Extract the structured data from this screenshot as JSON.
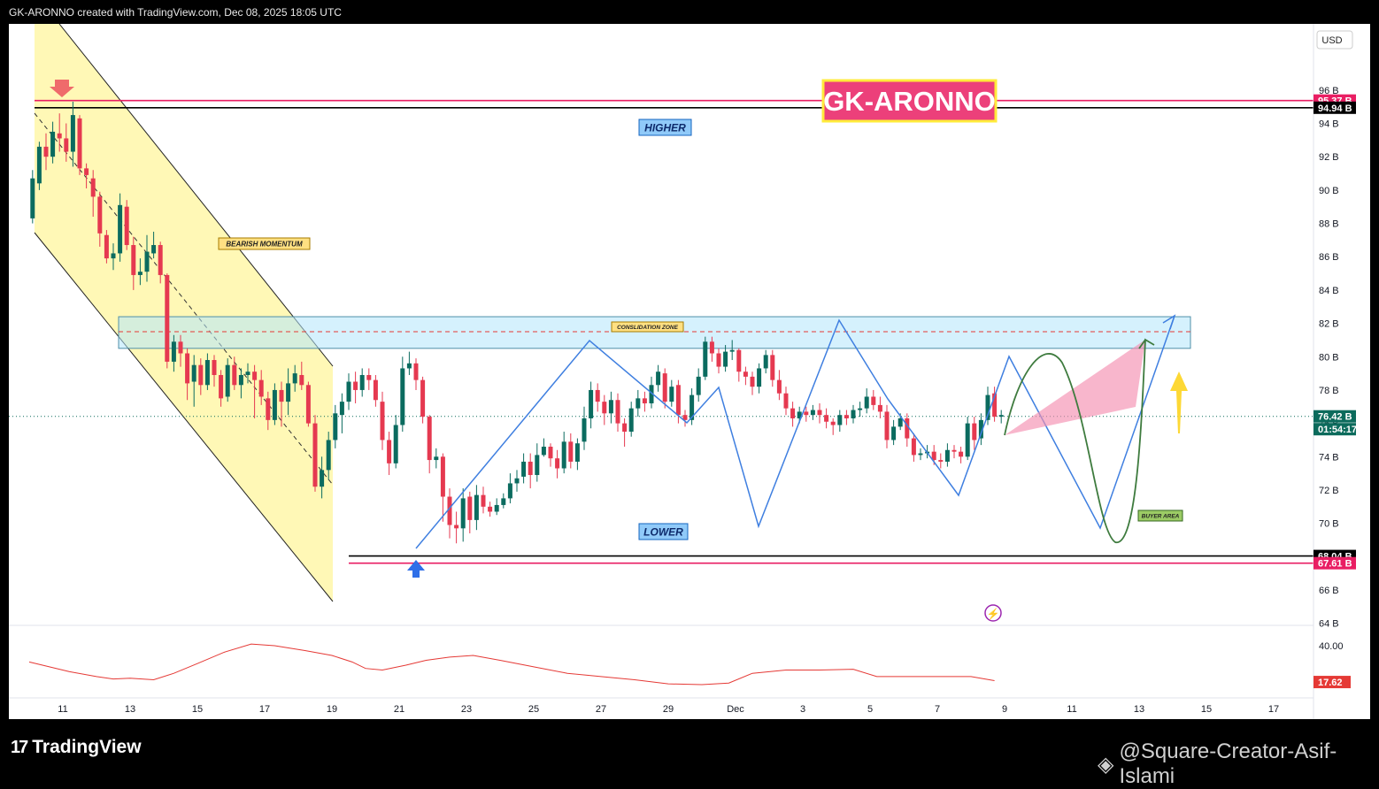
{
  "header": {
    "title": "GK-ARONNO created with TradingView.com, Dec 08, 2025 18:05 UTC"
  },
  "footer": {
    "brand": "TradingView",
    "watermark": "@Square-Creator-Asif-Islami"
  },
  "chart_data": {
    "type": "candlestick",
    "currency": "USD",
    "y_ticks": [
      "96 B",
      "94 B",
      "92 B",
      "90 B",
      "88 B",
      "86 B",
      "84 B",
      "82 B",
      "80 B",
      "78 B",
      "76 B",
      "74 B",
      "72 B",
      "70 B",
      "68 B",
      "66 B",
      "64 B"
    ],
    "y_tick_values": [
      96,
      94,
      92,
      90,
      88,
      86,
      84,
      82,
      80,
      78,
      76,
      74,
      72,
      70,
      68,
      66,
      64
    ],
    "x_ticks": [
      "11",
      "13",
      "15",
      "17",
      "19",
      "21",
      "23",
      "25",
      "27",
      "29",
      "Dec",
      "3",
      "5",
      "7",
      "9",
      "11",
      "13",
      "15",
      "17"
    ],
    "x_tick_days": [
      11,
      13,
      15,
      17,
      19,
      21,
      23,
      25,
      27,
      29,
      31,
      33,
      35,
      37,
      39,
      41,
      43,
      45,
      47
    ],
    "price_labels": [
      {
        "text": "95.37 B",
        "value": 95.37,
        "color": "#e91e63"
      },
      {
        "text": "94.94 B",
        "value": 94.94,
        "color": "#000000"
      },
      {
        "text": "76.42 B",
        "value": 76.42,
        "color": "#0c6b5c"
      },
      {
        "text": "01:54:17",
        "value": 75.65,
        "color": "#0c6b5c"
      },
      {
        "text": "68.04 B",
        "value": 68.04,
        "color": "#000000"
      },
      {
        "text": "67.61 B",
        "value": 67.61,
        "color": "#e91e63"
      }
    ],
    "levels": [
      {
        "name": "resistance-pink",
        "value": 95.37,
        "color": "#e91e63"
      },
      {
        "name": "resistance-black",
        "value": 94.94,
        "color": "#000000"
      },
      {
        "name": "support-black",
        "value": 68.04,
        "color": "#000000"
      },
      {
        "name": "support-pink",
        "value": 67.61,
        "color": "#e91e63"
      },
      {
        "name": "current-price",
        "value": 76.42,
        "color": "#0c6b5c"
      }
    ],
    "annotations": {
      "brand_label": "GK-ARONNO",
      "higher": "HIGHER",
      "lower": "LOWER",
      "bearish": "BEARISH MOMENTUM",
      "consolidation": "CONSLIDATION ZONE",
      "buyer": "BUYER AREA"
    },
    "consolidation_zone": {
      "low": 80.5,
      "high": 82.4
    },
    "oscillator": {
      "y_ticks": [
        "40.00",
        "17.62"
      ],
      "y_tick_values": [
        40.0,
        17.62
      ],
      "current": 17.62,
      "color": "#e53935",
      "values": [
        [
          10.0,
          30
        ],
        [
          10.6,
          27
        ],
        [
          11.2,
          24
        ],
        [
          12,
          21
        ],
        [
          12.5,
          19.5
        ],
        [
          13,
          20
        ],
        [
          13.7,
          19
        ],
        [
          14.3,
          23
        ],
        [
          15,
          29
        ],
        [
          15.8,
          36
        ],
        [
          16.6,
          41
        ],
        [
          17.3,
          40
        ],
        [
          18.2,
          37
        ],
        [
          19,
          34
        ],
        [
          19.6,
          30
        ],
        [
          20,
          26
        ],
        [
          20.5,
          25
        ],
        [
          21.2,
          28
        ],
        [
          21.8,
          31
        ],
        [
          22.5,
          33
        ],
        [
          23.2,
          34
        ],
        [
          24,
          31
        ],
        [
          25,
          27
        ],
        [
          26,
          23
        ],
        [
          27,
          21
        ],
        [
          28,
          19
        ],
        [
          29,
          16.5
        ],
        [
          30,
          16
        ],
        [
          30.8,
          17
        ],
        [
          31.5,
          23
        ],
        [
          32.5,
          25
        ],
        [
          33.5,
          25
        ],
        [
          34.5,
          25.5
        ],
        [
          35.2,
          21
        ],
        [
          36,
          21
        ],
        [
          37,
          21
        ],
        [
          38,
          21
        ],
        [
          38.7,
          18.5
        ]
      ]
    },
    "candles": [
      [
        10.1,
        88.3,
        90.7,
        88.0,
        91.2
      ],
      [
        10.3,
        90.4,
        92.6,
        90.0,
        92.9
      ],
      [
        10.5,
        92.6,
        92.0,
        91.2,
        93.4
      ],
      [
        10.7,
        92.0,
        93.5,
        91.6,
        94.1
      ],
      [
        10.9,
        93.4,
        93.1,
        92.3,
        94.6
      ],
      [
        11.1,
        93.1,
        92.3,
        91.7,
        94.0
      ],
      [
        11.3,
        92.3,
        94.5,
        91.4,
        95.3
      ],
      [
        11.5,
        94.3,
        91.3,
        90.9,
        94.5
      ],
      [
        11.7,
        91.3,
        90.9,
        90.1,
        91.6
      ],
      [
        11.9,
        90.7,
        89.6,
        88.4,
        91.2
      ],
      [
        12.1,
        89.6,
        87.4,
        86.6,
        89.9
      ],
      [
        12.3,
        87.3,
        85.9,
        85.6,
        87.6
      ],
      [
        12.5,
        85.9,
        86.2,
        85.2,
        86.8
      ],
      [
        12.7,
        86.2,
        89.1,
        85.7,
        89.8
      ],
      [
        12.9,
        89.0,
        86.7,
        86.4,
        89.4
      ],
      [
        13.1,
        86.7,
        84.9,
        84.0,
        87.2
      ],
      [
        13.3,
        84.9,
        85.1,
        84.3,
        85.9
      ],
      [
        13.5,
        85.1,
        86.3,
        84.5,
        87.3
      ],
      [
        13.7,
        86.2,
        86.7,
        85.9,
        87.5
      ],
      [
        13.9,
        86.7,
        84.9,
        84.4,
        86.9
      ],
      [
        14.1,
        84.9,
        79.7,
        79.3,
        85.0
      ],
      [
        14.3,
        79.7,
        80.9,
        79.1,
        81.3
      ],
      [
        14.5,
        80.9,
        80.2,
        79.4,
        81.3
      ],
      [
        14.7,
        80.2,
        78.4,
        77.4,
        80.5
      ],
      [
        14.9,
        78.5,
        79.5,
        77.0,
        80.1
      ],
      [
        15.1,
        79.5,
        78.3,
        77.7,
        79.9
      ],
      [
        15.3,
        78.3,
        79.8,
        78.0,
        80.2
      ],
      [
        15.5,
        79.8,
        78.9,
        78.2,
        80.1
      ],
      [
        15.7,
        78.9,
        77.5,
        77.0,
        79.2
      ],
      [
        15.9,
        77.6,
        79.5,
        77.3,
        79.9
      ],
      [
        16.1,
        79.5,
        78.3,
        78.0,
        80.0
      ],
      [
        16.3,
        78.3,
        78.9,
        77.5,
        79.3
      ],
      [
        16.5,
        78.9,
        79.1,
        78.4,
        79.6
      ],
      [
        16.7,
        79.1,
        78.6,
        76.3,
        79.5
      ],
      [
        16.9,
        78.6,
        77.6,
        77.1,
        79.2
      ],
      [
        17.1,
        77.5,
        76.2,
        75.6,
        77.9
      ],
      [
        17.3,
        76.2,
        78.0,
        75.9,
        78.4
      ],
      [
        17.5,
        78.0,
        77.3,
        75.8,
        78.5
      ],
      [
        17.7,
        77.3,
        78.4,
        76.5,
        79.3
      ],
      [
        17.9,
        78.4,
        79.0,
        77.9,
        79.5
      ],
      [
        18.1,
        78.9,
        78.3,
        78.0,
        79.7
      ],
      [
        18.3,
        78.3,
        76.0,
        75.8,
        78.5
      ],
      [
        18.5,
        76.0,
        72.2,
        71.9,
        76.5
      ],
      [
        18.7,
        72.2,
        73.2,
        71.5,
        74.0
      ],
      [
        18.9,
        73.2,
        75.0,
        72.6,
        75.5
      ],
      [
        19.1,
        75.0,
        76.6,
        74.5,
        77.1
      ],
      [
        19.3,
        76.5,
        77.3,
        75.4,
        77.8
      ],
      [
        19.5,
        77.3,
        78.5,
        76.8,
        79.0
      ],
      [
        19.7,
        78.5,
        78.0,
        77.2,
        79.1
      ],
      [
        19.9,
        78.0,
        78.9,
        77.6,
        79.3
      ],
      [
        20.1,
        78.9,
        78.6,
        78.0,
        79.3
      ],
      [
        20.3,
        78.6,
        77.4,
        77.0,
        78.9
      ],
      [
        20.5,
        77.3,
        75.0,
        74.4,
        77.9
      ],
      [
        20.7,
        75.0,
        73.6,
        72.9,
        75.5
      ],
      [
        20.9,
        73.6,
        75.9,
        73.3,
        76.5
      ],
      [
        21.1,
        75.9,
        79.3,
        75.5,
        80.0
      ],
      [
        21.3,
        79.3,
        79.6,
        78.9,
        80.3
      ],
      [
        21.5,
        79.6,
        78.6,
        78.0,
        79.9
      ],
      [
        21.7,
        78.6,
        76.4,
        76.0,
        78.8
      ],
      [
        21.9,
        76.4,
        73.8,
        73.0,
        76.5
      ],
      [
        22.1,
        73.8,
        74.0,
        73.3,
        74.5
      ],
      [
        22.3,
        74.0,
        71.6,
        70.1,
        74.2
      ],
      [
        22.5,
        71.6,
        69.9,
        69.1,
        72.1
      ],
      [
        22.7,
        69.9,
        69.7,
        68.8,
        70.7
      ],
      [
        22.9,
        69.7,
        71.5,
        68.9,
        72.1
      ],
      [
        23.1,
        71.6,
        70.2,
        69.4,
        71.9
      ],
      [
        23.3,
        70.2,
        71.7,
        69.6,
        72.3
      ],
      [
        23.5,
        71.7,
        71.0,
        70.6,
        72.2
      ],
      [
        23.7,
        71.0,
        70.7,
        70.4,
        71.3
      ],
      [
        23.9,
        70.7,
        71.1,
        70.5,
        71.5
      ],
      [
        24.1,
        71.1,
        71.5,
        70.9,
        71.8
      ],
      [
        24.3,
        71.5,
        72.4,
        71.2,
        73.0
      ],
      [
        24.5,
        72.4,
        72.7,
        71.9,
        73.2
      ],
      [
        24.7,
        72.8,
        73.7,
        72.4,
        74.2
      ],
      [
        24.9,
        73.7,
        72.9,
        72.1,
        74.2
      ],
      [
        25.1,
        72.9,
        74.1,
        72.5,
        74.8
      ],
      [
        25.3,
        74.1,
        74.6,
        74.0,
        75.1
      ],
      [
        25.5,
        74.6,
        73.9,
        73.4,
        74.8
      ],
      [
        25.7,
        73.9,
        73.3,
        72.7,
        74.4
      ],
      [
        25.9,
        73.3,
        74.9,
        73.0,
        75.5
      ],
      [
        26.1,
        74.9,
        73.7,
        73.3,
        75.4
      ],
      [
        26.3,
        73.7,
        74.8,
        73.2,
        75.1
      ],
      [
        26.5,
        74.9,
        76.3,
        74.4,
        77.0
      ],
      [
        26.7,
        76.3,
        78.0,
        75.7,
        78.5
      ],
      [
        26.9,
        78.0,
        77.3,
        76.7,
        78.4
      ],
      [
        27.1,
        77.3,
        76.6,
        75.9,
        77.7
      ],
      [
        27.3,
        76.6,
        77.4,
        76.0,
        77.9
      ],
      [
        27.5,
        77.4,
        76.0,
        75.5,
        77.8
      ],
      [
        27.7,
        76.0,
        75.5,
        74.6,
        76.3
      ],
      [
        27.9,
        75.5,
        76.9,
        75.2,
        77.3
      ],
      [
        28.1,
        76.9,
        77.5,
        76.4,
        78.0
      ],
      [
        28.3,
        77.5,
        77.2,
        76.7,
        77.9
      ],
      [
        28.5,
        77.2,
        78.3,
        76.9,
        78.8
      ],
      [
        28.7,
        78.3,
        79.1,
        77.9,
        79.5
      ],
      [
        28.9,
        79.0,
        77.3,
        76.9,
        79.3
      ],
      [
        29.1,
        77.3,
        78.2,
        77.0,
        78.6
      ],
      [
        29.3,
        78.3,
        76.5,
        76.0,
        78.6
      ],
      [
        29.5,
        76.5,
        76.2,
        75.8,
        76.8
      ],
      [
        29.7,
        76.2,
        77.7,
        75.9,
        78.1
      ],
      [
        29.9,
        77.7,
        78.8,
        77.3,
        79.3
      ],
      [
        30.1,
        78.8,
        80.9,
        78.6,
        81.2
      ],
      [
        30.3,
        80.9,
        80.2,
        79.7,
        81.2
      ],
      [
        30.5,
        80.2,
        79.4,
        79.0,
        80.5
      ],
      [
        30.7,
        79.4,
        80.3,
        79.1,
        80.7
      ],
      [
        30.9,
        80.3,
        80.4,
        79.8,
        81.0
      ],
      [
        31.1,
        80.4,
        79.1,
        78.5,
        80.5
      ],
      [
        31.3,
        79.1,
        78.8,
        78.3,
        79.4
      ],
      [
        31.5,
        78.8,
        78.2,
        77.7,
        79.1
      ],
      [
        31.7,
        78.2,
        79.3,
        77.8,
        79.6
      ],
      [
        31.9,
        79.3,
        80.1,
        79.0,
        80.4
      ],
      [
        32.1,
        80.1,
        78.6,
        78.2,
        80.4
      ],
      [
        32.3,
        78.6,
        77.8,
        77.4,
        79.2
      ],
      [
        32.5,
        77.8,
        76.9,
        76.5,
        78.2
      ],
      [
        32.7,
        76.9,
        76.3,
        75.8,
        77.3
      ],
      [
        32.9,
        76.3,
        76.7,
        76.0,
        77.0
      ],
      [
        33.1,
        76.7,
        76.5,
        76.1,
        77.0
      ],
      [
        33.3,
        76.5,
        76.8,
        76.2,
        77.1
      ],
      [
        33.5,
        76.8,
        76.5,
        76.0,
        77.2
      ],
      [
        33.7,
        76.5,
        76.1,
        75.7,
        76.9
      ],
      [
        33.9,
        76.1,
        75.9,
        75.3,
        76.3
      ],
      [
        34.1,
        75.9,
        76.5,
        75.5,
        76.8
      ],
      [
        34.3,
        76.5,
        76.3,
        75.9,
        76.8
      ],
      [
        34.5,
        76.3,
        76.8,
        76.0,
        77.1
      ],
      [
        34.7,
        76.8,
        76.9,
        76.4,
        77.3
      ],
      [
        34.9,
        76.9,
        77.6,
        76.6,
        78.1
      ],
      [
        35.1,
        77.6,
        77.1,
        76.8,
        78.0
      ],
      [
        35.3,
        77.1,
        76.7,
        76.3,
        77.6
      ],
      [
        35.5,
        76.7,
        75.0,
        74.5,
        77.1
      ],
      [
        35.7,
        75.0,
        75.8,
        74.7,
        76.2
      ],
      [
        35.9,
        75.8,
        76.3,
        75.6,
        76.6
      ],
      [
        36.1,
        76.3,
        75.1,
        74.6,
        76.6
      ],
      [
        36.3,
        75.1,
        74.1,
        73.7,
        75.4
      ],
      [
        36.5,
        74.1,
        74.2,
        73.8,
        74.5
      ],
      [
        36.7,
        74.2,
        74.3,
        73.9,
        74.7
      ],
      [
        36.9,
        74.3,
        73.8,
        73.5,
        74.7
      ],
      [
        37.1,
        73.8,
        73.7,
        73.3,
        74.2
      ],
      [
        37.3,
        73.7,
        74.4,
        73.4,
        74.8
      ],
      [
        37.5,
        74.4,
        74.3,
        73.9,
        74.7
      ],
      [
        37.7,
        74.3,
        74.0,
        73.6,
        74.6
      ],
      [
        37.9,
        74.0,
        76.0,
        73.8,
        76.4
      ],
      [
        38.1,
        76.0,
        75.0,
        74.4,
        76.4
      ],
      [
        38.3,
        75.1,
        76.2,
        74.7,
        76.6
      ],
      [
        38.5,
        76.2,
        77.7,
        75.9,
        78.2
      ],
      [
        38.7,
        77.8,
        76.4,
        76.1,
        78.2
      ],
      [
        38.9,
        76.4,
        76.5,
        76.0,
        76.8
      ]
    ]
  }
}
